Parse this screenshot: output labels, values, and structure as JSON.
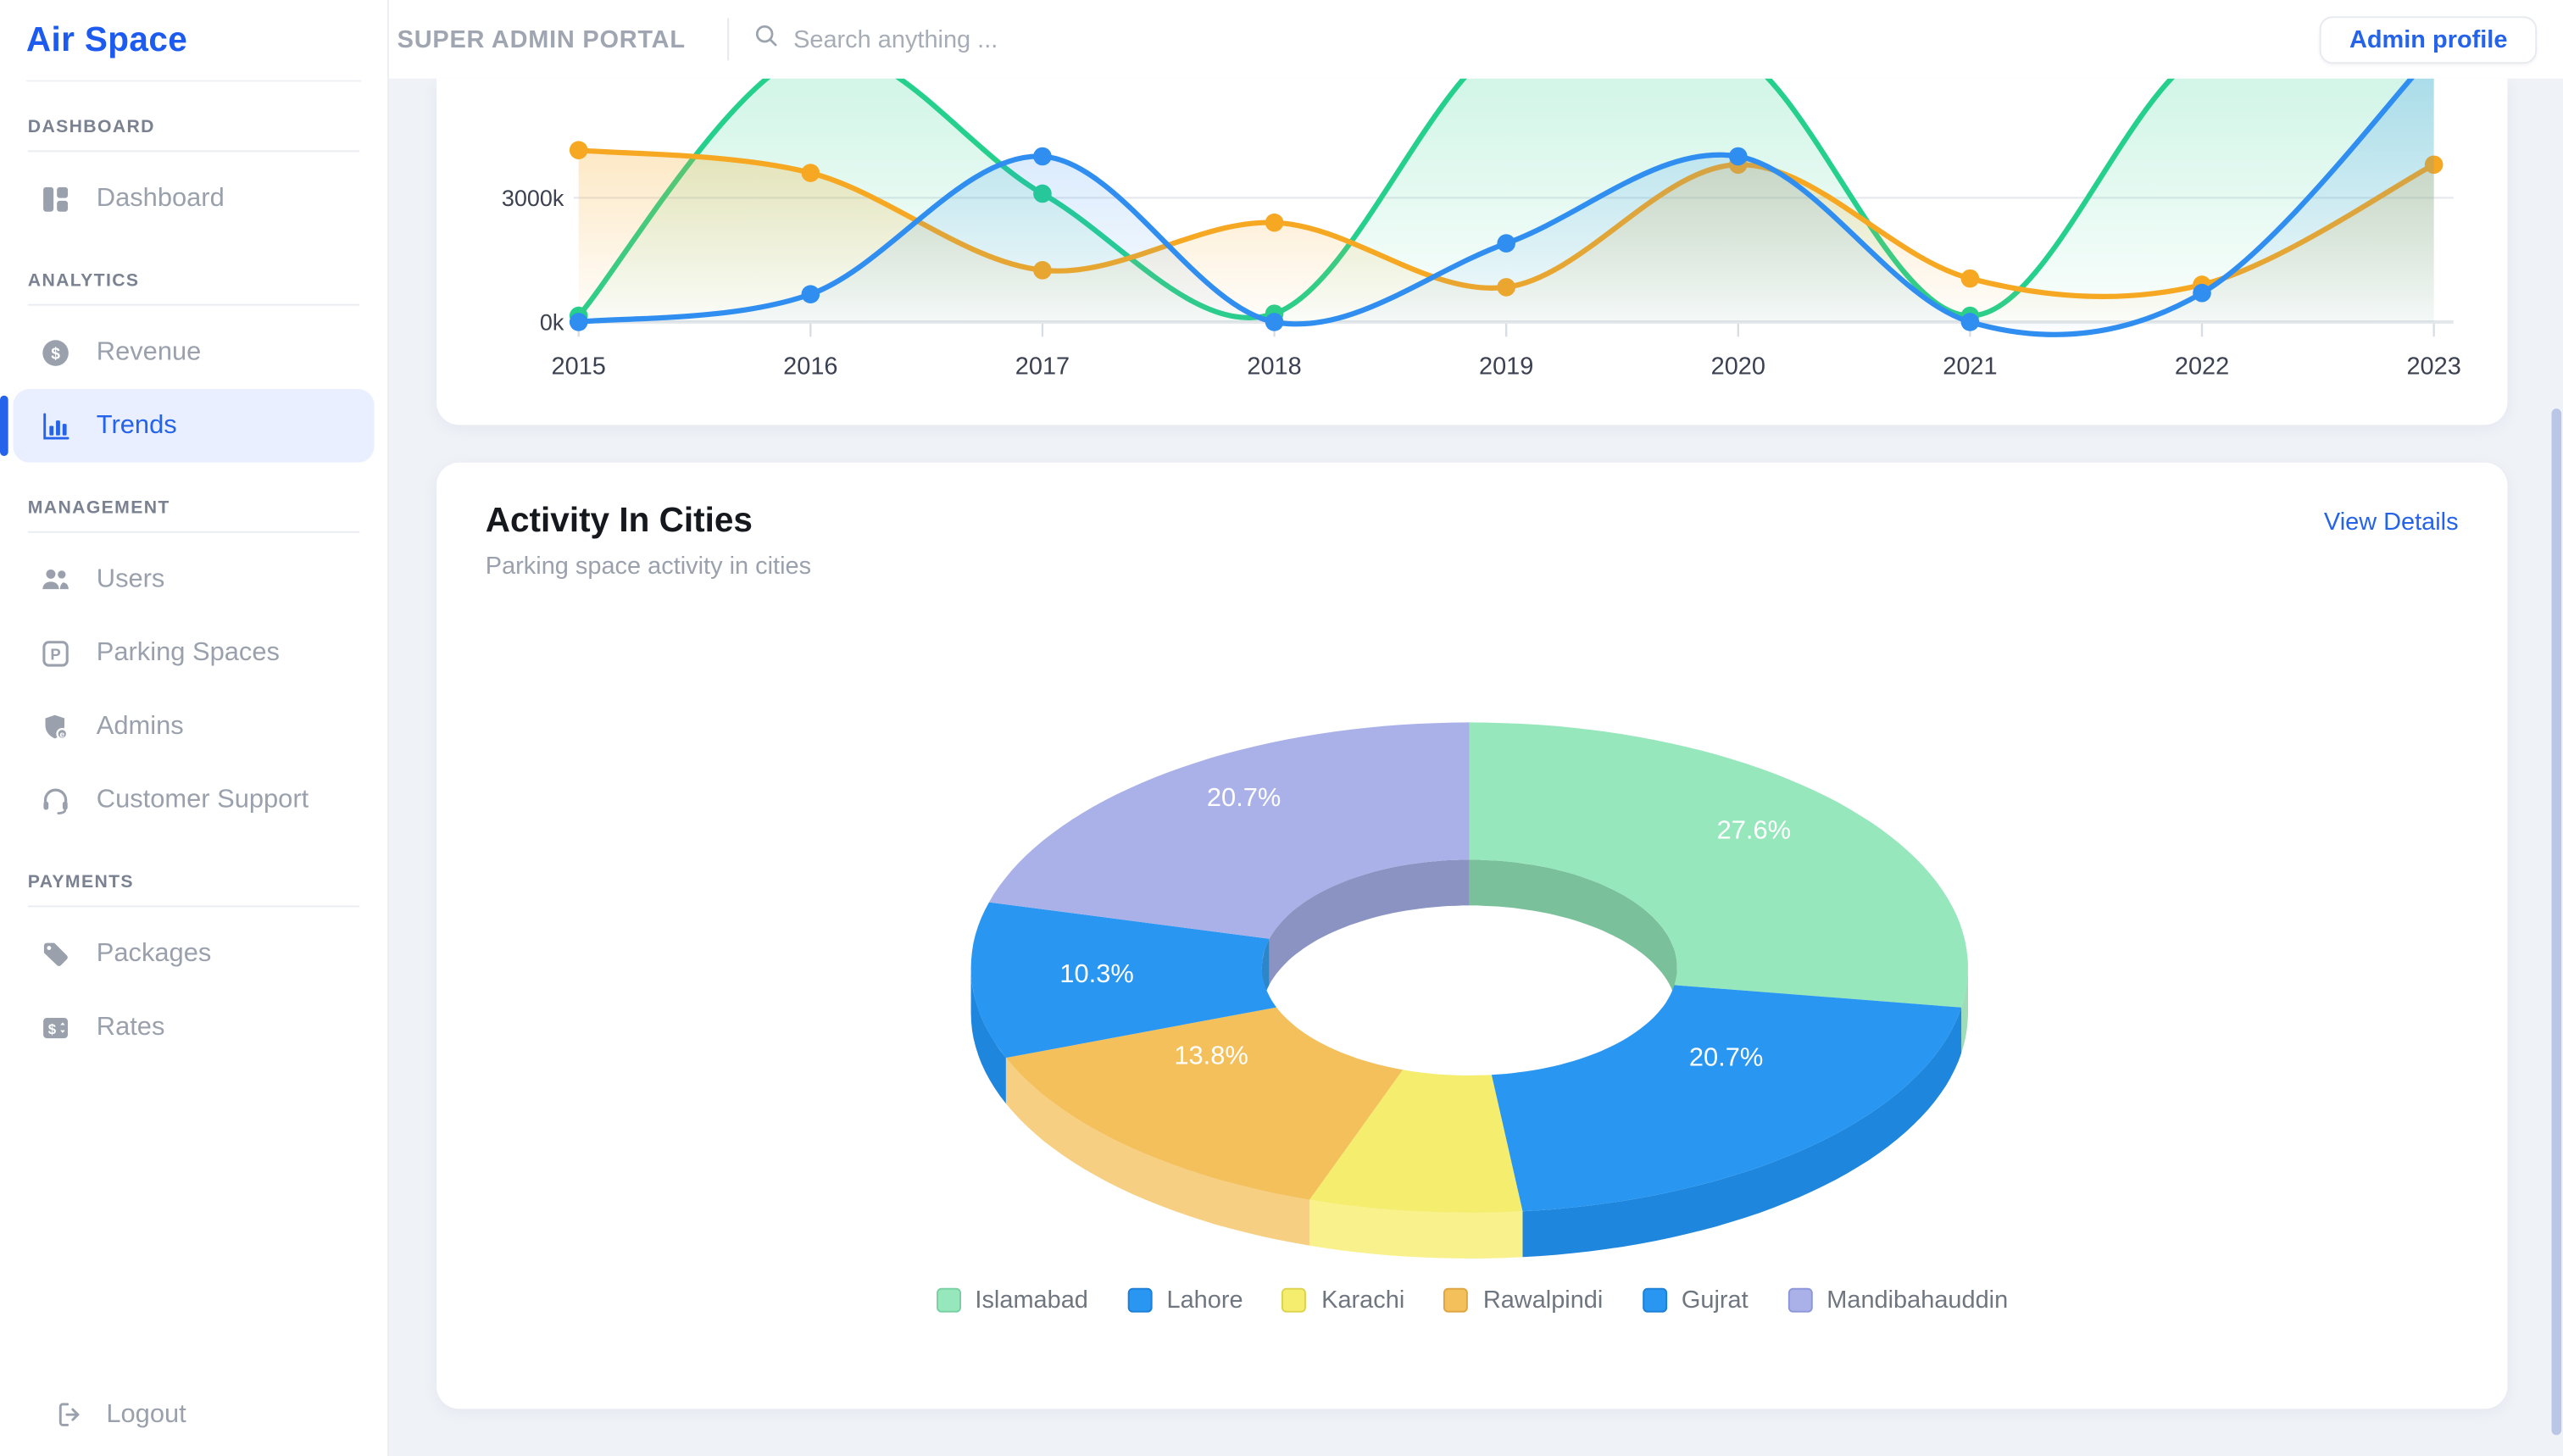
{
  "brand": {
    "logo": "Air Space",
    "portal_title": "SUPER ADMIN PORTAL"
  },
  "topbar": {
    "search_placeholder": "Search anything ...",
    "admin_button": "Admin profile"
  },
  "sidebar": {
    "sections": [
      {
        "title": "DASHBOARD",
        "items": [
          {
            "label": "Dashboard",
            "active": false
          }
        ]
      },
      {
        "title": "ANALYTICS",
        "items": [
          {
            "label": "Revenue",
            "active": false
          },
          {
            "label": "Trends",
            "active": true
          }
        ]
      },
      {
        "title": "MANAGEMENT",
        "items": [
          {
            "label": "Users"
          },
          {
            "label": "Parking Spaces"
          },
          {
            "label": "Admins"
          },
          {
            "label": "Customer Support"
          }
        ]
      },
      {
        "title": "PAYMENTS",
        "items": [
          {
            "label": "Packages"
          },
          {
            "label": "Rates"
          }
        ]
      }
    ],
    "logout_label": "Logout"
  },
  "activity_card": {
    "title": "Activity In Cities",
    "subtitle": "Parking space activity in cities",
    "link": "View Details"
  },
  "chart_data": [
    {
      "type": "line",
      "title": "",
      "x": [
        2015,
        2016,
        2017,
        2018,
        2019,
        2020,
        2021,
        2022,
        2023
      ],
      "unit": "k",
      "y_ticks": [
        {
          "value": 0,
          "label": "0k"
        },
        {
          "value": 3000,
          "label": "3000k"
        }
      ],
      "visible_ylim": [
        0,
        6000
      ],
      "grid": "single-horizontal-at-3000k",
      "legend_position": "hidden (scrolled out of view)",
      "series": [
        {
          "name": "green-series",
          "color": "#25d08d",
          "values": [
            150,
            6500,
            3100,
            200,
            6800,
            6500,
            150,
            6500,
            6500
          ]
        },
        {
          "name": "orange-series",
          "color": "#f6a822",
          "values": [
            4150,
            3600,
            1250,
            2400,
            840,
            3800,
            1050,
            900,
            3800
          ]
        },
        {
          "name": "blue-series",
          "color": "#2f8ef0",
          "values": [
            0,
            670,
            4000,
            0,
            1900,
            4000,
            0,
            700,
            6500
          ]
        }
      ]
    },
    {
      "type": "pie",
      "style": "3d-donut",
      "title": "Activity In Cities",
      "start_angle_deg": 0,
      "direction": "clockwise",
      "slices": [
        {
          "name": "Islamabad",
          "pct": 27.6,
          "label": "27.6%",
          "color": "#97e7bd",
          "side": "#9fdcb8",
          "inner": "#7ac09b",
          "border": "#77cfa2"
        },
        {
          "name": "Lahore",
          "pct": 20.7,
          "label": "20.7%",
          "color": "#2997f1",
          "side": "#1e86dd",
          "inner": "#2d86c8",
          "border": "#1c7fd6"
        },
        {
          "name": "Karachi",
          "pct": 6.9,
          "label": "",
          "color": "#f5ed6e",
          "side": "#f8f18c",
          "inner": "#d8cf55",
          "border": "#ddd24e"
        },
        {
          "name": "Rawalpindi",
          "pct": 13.8,
          "label": "13.8%",
          "color": "#f3c05c",
          "side": "#f6cf82",
          "inner": "#d9a93e",
          "border": "#dda440"
        },
        {
          "name": "Gujrat",
          "pct": 10.3,
          "label": "10.3%",
          "color": "#2997f1",
          "side": "#1e86dd",
          "inner": "#2d86c8",
          "border": "#1c7fd6"
        },
        {
          "name": "Mandibahauddin",
          "pct": 20.7,
          "label": "20.7%",
          "color": "#a9b1e8",
          "side": "#98a1dd",
          "inner": "#8a93c1",
          "border": "#8d96d8"
        }
      ],
      "legend_position": "bottom-center"
    }
  ],
  "colors": {
    "accent_blue": "#2563eb",
    "page_bg": "#eff2f7",
    "scrollbar": "#b9c6e6"
  }
}
